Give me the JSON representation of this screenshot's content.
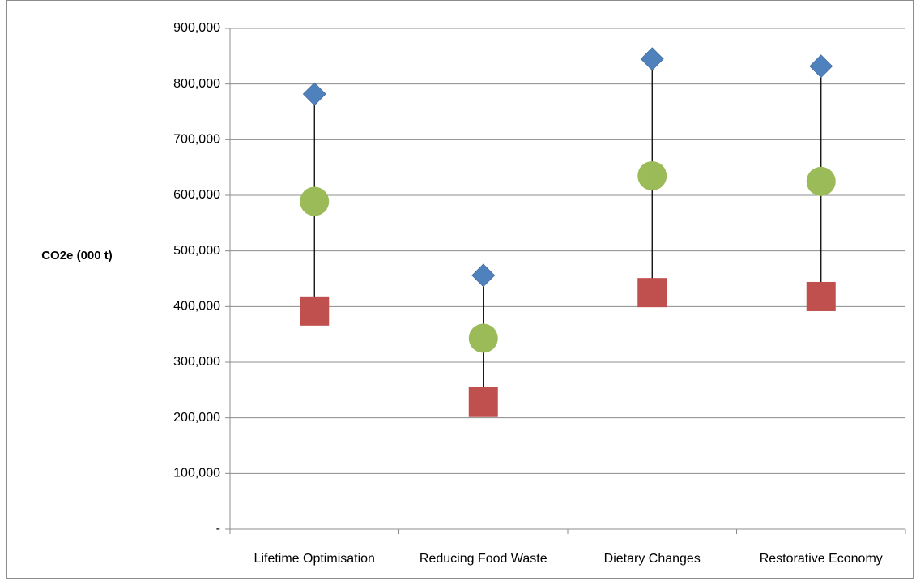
{
  "chart_data": {
    "type": "scatter",
    "title": "",
    "xlabel": "",
    "ylabel": "CO2e (000 t)",
    "ylim": [
      0,
      900000
    ],
    "yticks": [
      0,
      100000,
      200000,
      300000,
      400000,
      500000,
      600000,
      700000,
      800000,
      900000
    ],
    "ytick_labels": [
      "-",
      "100,000",
      "200,000",
      "300,000",
      "400,000",
      "500,000",
      "600,000",
      "700,000",
      "800,000",
      "900,000"
    ],
    "grid": true,
    "legend": "none",
    "categories": [
      "Lifetime Optimisation",
      "Reducing Food Waste",
      "Dietary Changes",
      "Restorative Economy"
    ],
    "series": [
      {
        "marker": "diamond",
        "color": "#4f81bd",
        "values": [
          782000,
          456000,
          845000,
          832000
        ]
      },
      {
        "marker": "circle",
        "color": "#9bbb59",
        "values": [
          589000,
          343000,
          635000,
          625000
        ]
      },
      {
        "marker": "square",
        "color": "#c0504d",
        "values": [
          392000,
          229000,
          425000,
          418000
        ]
      }
    ],
    "range_lines": {
      "color": "#000000",
      "from_series": 0,
      "to_series": 2
    }
  }
}
